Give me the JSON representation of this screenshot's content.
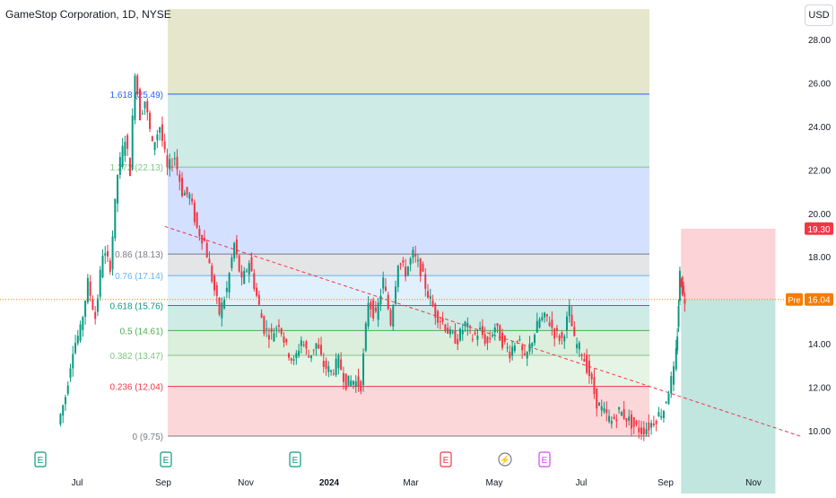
{
  "header": {
    "title": "GameStop Corporation, 1D, NYSE",
    "currency": "USD"
  },
  "chart_data": {
    "type": "candlestick",
    "title": "GameStop Corporation, 1D, NYSE",
    "ylim": [
      8.7,
      29.4
    ],
    "y_ticks": [
      10,
      12,
      14,
      16,
      18,
      20,
      22,
      24,
      26,
      28
    ],
    "y_tick_labels": [
      "10.00",
      "12.00",
      "14.00",
      "16.00",
      "18.00",
      "20.00",
      "22.00",
      "24.00",
      "26.00",
      "28.00"
    ],
    "x_tick_labels": [
      "Jul",
      "Sep",
      "Nov",
      "2024",
      "Mar",
      "May",
      "Jul",
      "Sep",
      "Nov"
    ],
    "price_path": [
      [
        2023.46,
        10.3
      ],
      [
        2023.475,
        11.6
      ],
      [
        2023.49,
        13.8
      ],
      [
        2023.505,
        14.6
      ],
      [
        2023.52,
        16.8
      ],
      [
        2023.535,
        15.2
      ],
      [
        2023.55,
        18.2
      ],
      [
        2023.565,
        17.6
      ],
      [
        2023.58,
        21.8
      ],
      [
        2023.595,
        23.5
      ],
      [
        2023.605,
        22.0
      ],
      [
        2023.615,
        26.6
      ],
      [
        2023.625,
        24.5
      ],
      [
        2023.635,
        25.2
      ],
      [
        2023.65,
        23.1
      ],
      [
        2023.665,
        24.0
      ],
      [
        2023.68,
        22.0
      ],
      [
        2023.695,
        22.6
      ],
      [
        2023.71,
        21.0
      ],
      [
        2023.725,
        20.8
      ],
      [
        2023.74,
        19.3
      ],
      [
        2023.755,
        18.7
      ],
      [
        2023.77,
        17.0
      ],
      [
        2023.785,
        15.4
      ],
      [
        2023.8,
        16.5
      ],
      [
        2023.815,
        18.6
      ],
      [
        2023.83,
        16.8
      ],
      [
        2023.845,
        17.8
      ],
      [
        2023.86,
        16.2
      ],
      [
        2023.875,
        14.7
      ],
      [
        2023.89,
        14.4
      ],
      [
        2023.905,
        15.0
      ],
      [
        2023.92,
        13.8
      ],
      [
        2023.935,
        13.1
      ],
      [
        2023.95,
        14.2
      ],
      [
        2023.965,
        13.4
      ],
      [
        2023.98,
        14.0
      ],
      [
        2023.995,
        13.0
      ],
      [
        2024.01,
        12.7
      ],
      [
        2024.025,
        13.2
      ],
      [
        2024.04,
        12.2
      ],
      [
        2024.055,
        12.3
      ],
      [
        2024.07,
        12.1
      ],
      [
        2024.085,
        16.0
      ],
      [
        2024.1,
        15.2
      ],
      [
        2024.115,
        16.9
      ],
      [
        2024.13,
        15.0
      ],
      [
        2024.145,
        17.8
      ],
      [
        2024.16,
        17.3
      ],
      [
        2024.175,
        18.1
      ],
      [
        2024.19,
        17.4
      ],
      [
        2024.205,
        16.3
      ],
      [
        2024.22,
        15.4
      ],
      [
        2024.235,
        15.0
      ],
      [
        2024.25,
        14.4
      ],
      [
        2024.265,
        14.2
      ],
      [
        2024.28,
        14.9
      ],
      [
        2024.295,
        14.3
      ],
      [
        2024.31,
        14.6
      ],
      [
        2024.325,
        14.0
      ],
      [
        2024.34,
        14.8
      ],
      [
        2024.355,
        14.1
      ],
      [
        2024.37,
        13.6
      ],
      [
        2024.385,
        14.3
      ],
      [
        2024.4,
        13.2
      ],
      [
        2024.415,
        14.2
      ],
      [
        2024.43,
        15.1
      ],
      [
        2024.445,
        15.2
      ],
      [
        2024.46,
        14.5
      ],
      [
        2024.475,
        14.2
      ],
      [
        2024.49,
        15.5
      ],
      [
        2024.5,
        14.1
      ],
      [
        2024.515,
        13.6
      ],
      [
        2024.53,
        12.6
      ],
      [
        2024.545,
        11.3
      ],
      [
        2024.56,
        10.8
      ],
      [
        2024.575,
        10.4
      ],
      [
        2024.59,
        10.9
      ],
      [
        2024.605,
        10.6
      ],
      [
        2024.62,
        10.2
      ],
      [
        2024.635,
        10.0
      ],
      [
        2024.65,
        10.2
      ],
      [
        2024.665,
        10.6
      ],
      [
        2024.68,
        11.0
      ],
      [
        2024.69,
        11.9
      ],
      [
        2024.7,
        12.7
      ],
      [
        2024.705,
        14.5
      ],
      [
        2024.71,
        17.2
      ],
      [
        2024.715,
        16.5
      ],
      [
        2024.72,
        16.04
      ]
    ],
    "fibonacci": [
      {
        "level": "0",
        "price": 9.75,
        "label": "0 (9.75)",
        "color": "#787b86"
      },
      {
        "level": "0.236",
        "price": 12.04,
        "label": "0.236 (12.04)",
        "color": "#f23645"
      },
      {
        "level": "0.382",
        "price": 13.47,
        "label": "0.382 (13.47)",
        "color": "#81c784"
      },
      {
        "level": "0.5",
        "price": 14.61,
        "label": "0.5 (14.61)",
        "color": "#4caf50"
      },
      {
        "level": "0.618",
        "price": 15.76,
        "label": "0.618 (15.76)",
        "color": "#089981"
      },
      {
        "level": "0.76",
        "price": 17.14,
        "label": "0.76 (17.14)",
        "color": "#64b5f6"
      },
      {
        "level": "0.86",
        "price": 18.13,
        "label": "0.86 (18.13)",
        "color": "#787b86"
      },
      {
        "level": "1.272",
        "price": 22.13,
        "label": "1.272 (22.13)",
        "color": "#81c784"
      },
      {
        "level": "1.618",
        "price": 25.49,
        "label": "1.618 (25.49)",
        "color": "#2962ff"
      }
    ],
    "fib_zones": [
      {
        "from": 9.75,
        "to": 12.04,
        "color": "#f23645"
      },
      {
        "from": 12.04,
        "to": 13.47,
        "color": "#81c784"
      },
      {
        "from": 13.47,
        "to": 14.61,
        "color": "#4caf50"
      },
      {
        "from": 14.61,
        "to": 15.76,
        "color": "#089981"
      },
      {
        "from": 15.76,
        "to": 17.14,
        "color": "#64b5f6"
      },
      {
        "from": 17.14,
        "to": 18.13,
        "color": "#787b86"
      },
      {
        "from": 18.13,
        "to": 22.13,
        "color": "#2962ff"
      },
      {
        "from": 22.13,
        "to": 25.49,
        "color": "#089981"
      },
      {
        "from": 25.49,
        "to": 29.4,
        "color": "#808000"
      }
    ],
    "trendline": {
      "from": [
        2023.67,
        19.4
      ],
      "to": [
        2024.95,
        9.75
      ],
      "color": "#f23645",
      "style": "dashed"
    },
    "position": {
      "entry": 16.04,
      "target_top": 19.3,
      "stop": 8.7,
      "start": 2024.71,
      "end": 2024.9
    },
    "current_price": {
      "value": 16.04,
      "label": "16.04",
      "tag": "Pre",
      "color": "#f57c00"
    },
    "price_label": {
      "value": 19.3,
      "label": "19.30",
      "color": "#f23645"
    },
    "events": [
      {
        "x": 2023.5,
        "icon": "E",
        "type": "earnings"
      },
      {
        "x": 2023.67,
        "icon": "E",
        "type": "earnings"
      },
      {
        "x": 2023.92,
        "icon": "E",
        "type": "earnings"
      },
      {
        "x": 2024.19,
        "icon": "E",
        "type": "earnings-missed"
      },
      {
        "x": 2024.37,
        "icon": "E",
        "type": "earnings"
      },
      {
        "x": 2024.71,
        "icon": "⚡",
        "type": "split"
      },
      {
        "x": 2024.75,
        "icon": "E",
        "type": "earnings-upcoming"
      }
    ]
  }
}
